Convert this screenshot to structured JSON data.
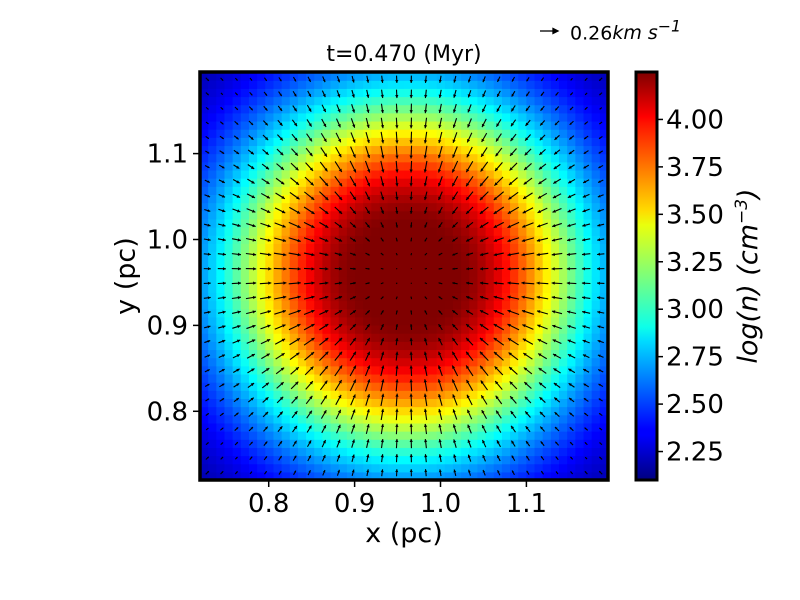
{
  "chart_data": {
    "type": "heatmap",
    "title": "t=0.470 (Myr)",
    "xlabel": "x (pc)",
    "ylabel": "y (pc)",
    "colorbar_label": {
      "base": "log(n) (cm",
      "exponent": "−3",
      "close": ")"
    },
    "xlim": [
      0.72,
      1.195
    ],
    "ylim": [
      0.72,
      1.195
    ],
    "x_ticks": [
      {
        "value": 0.8,
        "label": "0.8"
      },
      {
        "value": 0.9,
        "label": "0.9"
      },
      {
        "value": 1.0,
        "label": "1.0"
      },
      {
        "value": 1.1,
        "label": "1.1"
      }
    ],
    "y_ticks": [
      {
        "value": 0.8,
        "label": "0.8"
      },
      {
        "value": 0.9,
        "label": "0.9"
      },
      {
        "value": 1.0,
        "label": "1.0"
      },
      {
        "value": 1.1,
        "label": "1.1"
      }
    ],
    "colorbar_range": [
      2.1,
      4.25
    ],
    "colorbar_ticks": [
      {
        "value": 2.25,
        "label": "2.25"
      },
      {
        "value": 2.5,
        "label": "2.50"
      },
      {
        "value": 2.75,
        "label": "2.75"
      },
      {
        "value": 3.0,
        "label": "3.00"
      },
      {
        "value": 3.25,
        "label": "3.25"
      },
      {
        "value": 3.5,
        "label": "3.50"
      },
      {
        "value": 3.75,
        "label": "3.75"
      },
      {
        "value": 4.0,
        "label": "4.00"
      }
    ],
    "colormap": "jet",
    "density_field": {
      "center": [
        0.96,
        0.96
      ],
      "peak_log_n": 4.25,
      "floor_log_n": 2.1,
      "flat_radius_pc": 0.055,
      "falloff_width_pc": 0.185,
      "grid_cells": 50
    },
    "velocity_field": {
      "pattern": "radial infall toward center",
      "arrow_grid": 28,
      "arrow_color": "#000000"
    },
    "quiver_key": {
      "value": 0.26,
      "unit": "km s",
      "exponent": "−1",
      "label": "0.26"
    }
  }
}
